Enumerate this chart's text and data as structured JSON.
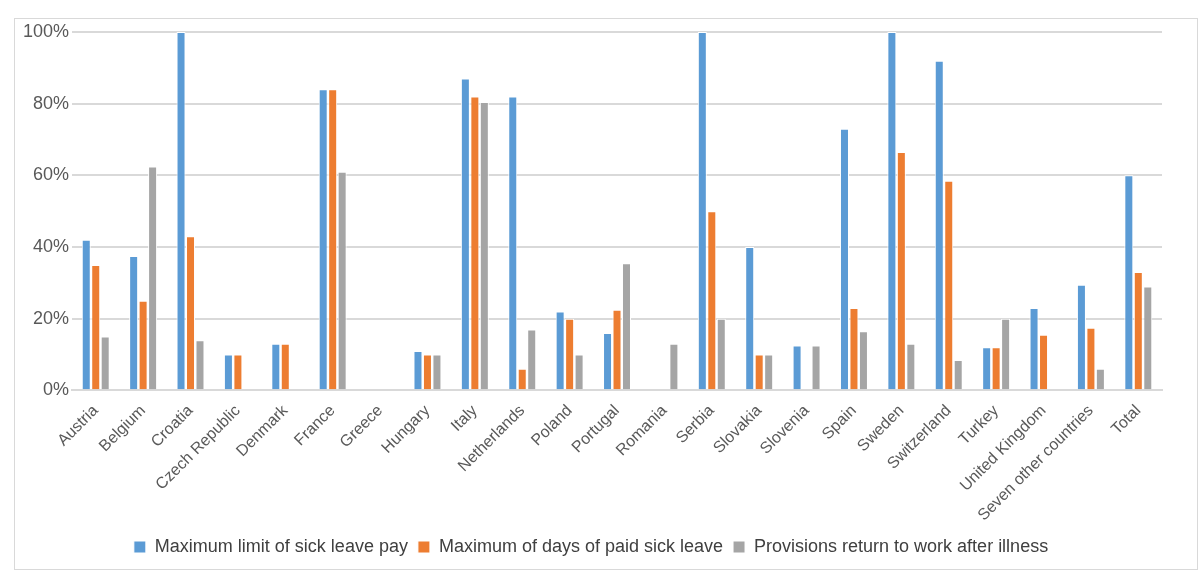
{
  "chart_data": {
    "type": "bar",
    "categories": [
      "Austria",
      "Belgium",
      "Croatia",
      "Czech Republic",
      "Denmark",
      "France",
      "Greece",
      "Hungary",
      "Italy",
      "Netherlands",
      "Poland",
      "Portugal",
      "Romania",
      "Serbia",
      "Slovakia",
      "Slovenia",
      "Spain",
      "Sweden",
      "Switzerland",
      "Turkey",
      "United Kingdom",
      "Seven other countries",
      "Total"
    ],
    "series": [
      {
        "name": "Maximum limit of sick leave pay",
        "color": "#5b9bd5",
        "values": [
          42,
          37.5,
          100,
          10,
          13,
          84,
          0,
          11,
          87,
          82,
          22,
          16,
          0,
          100,
          40,
          12.5,
          73,
          100,
          92,
          12,
          23,
          29.5,
          60
        ]
      },
      {
        "name": "Maximum of days of paid sick leave",
        "color": "#ed7d31",
        "values": [
          35,
          25,
          43,
          10,
          13,
          84,
          0,
          10,
          82,
          6,
          20,
          22.5,
          0,
          50,
          10,
          0,
          23,
          66.5,
          58.5,
          12,
          15.5,
          17.5,
          33
        ]
      },
      {
        "name": "Provisions return to work after illness",
        "color": "#a5a5a5",
        "values": [
          15,
          62.5,
          14,
          0,
          0,
          61,
          0,
          10,
          80.5,
          17,
          10,
          35.5,
          13,
          20,
          10,
          12.5,
          16.5,
          13,
          8.5,
          20,
          0,
          6,
          29
        ]
      }
    ],
    "ylim": [
      0,
      100
    ],
    "yticks": [
      {
        "value": 0,
        "label": "0%"
      },
      {
        "value": 20,
        "label": "20%"
      },
      {
        "value": 40,
        "label": "40%"
      },
      {
        "value": 60,
        "label": "60%"
      },
      {
        "value": 80,
        "label": "80%"
      },
      {
        "value": 100,
        "label": "100%"
      }
    ],
    "grid": "y",
    "legend": "bottom"
  }
}
